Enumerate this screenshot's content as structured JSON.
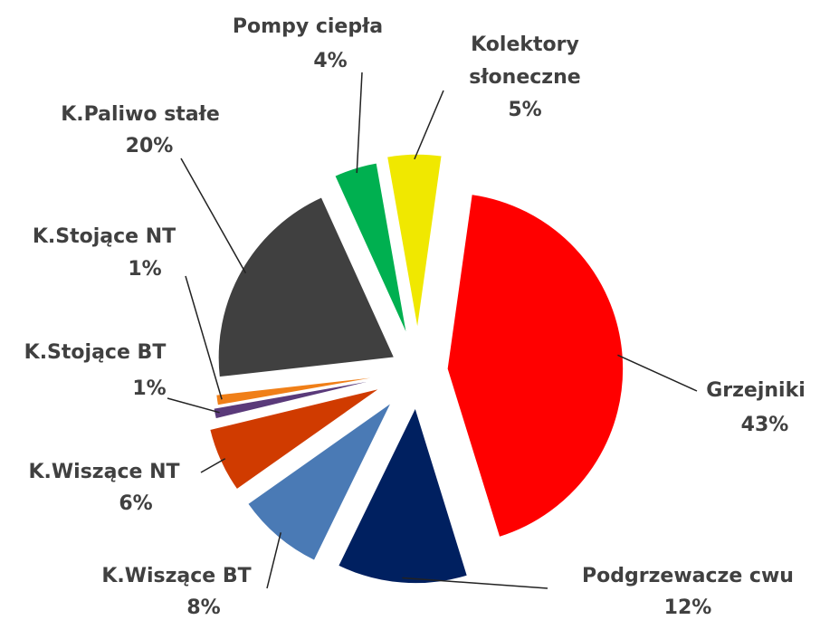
{
  "chart_data": {
    "type": "pie",
    "categories": [
      "Grzejniki",
      "Podgrzewacze cwu",
      "K.Wiszące  BT",
      "K.Wiszące  NT",
      "K.Stojące  BT",
      "K.Stojące  NT",
      "K.Paliwo stałe",
      "Pompy ciepła",
      "Kolektory słoneczne"
    ],
    "values": [
      43,
      12,
      8,
      6,
      1,
      1,
      20,
      4,
      5
    ],
    "value_labels": [
      "43%",
      "12%",
      "8%",
      "6%",
      "1%",
      "1%",
      "20%",
      "4%",
      "5%"
    ],
    "colors": [
      "#ff0000",
      "#002060",
      "#4a7ab5",
      "#d03b00",
      "#5a3a7a",
      "#f07f18",
      "#404040",
      "#00b050",
      "#f0e800"
    ]
  }
}
